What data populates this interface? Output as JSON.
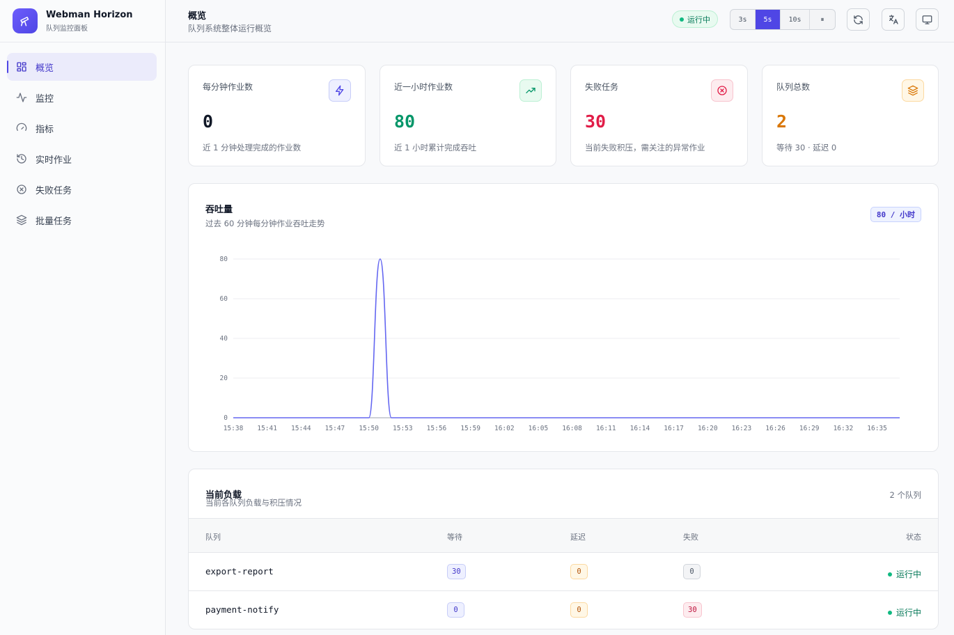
{
  "brand": {
    "title": "Webman Horizon",
    "subtitle": "队列监控面板"
  },
  "sidebar": {
    "items": [
      {
        "label": "概览",
        "icon": "grid-icon",
        "active": true
      },
      {
        "label": "监控",
        "icon": "activity-icon",
        "active": false
      },
      {
        "label": "指标",
        "icon": "gauge-icon",
        "active": false
      },
      {
        "label": "实时作业",
        "icon": "history-icon",
        "active": false
      },
      {
        "label": "失败任务",
        "icon": "x-circle-icon",
        "active": false
      },
      {
        "label": "批量任务",
        "icon": "layers-icon",
        "active": false
      }
    ]
  },
  "header": {
    "title": "概览",
    "subtitle": "队列系统整体运行概览",
    "status": "运行中",
    "intervals": [
      "3s",
      "5s",
      "10s",
      "⏸"
    ],
    "active_interval": "5s"
  },
  "colors": {
    "accent": "#4f46e5",
    "success": "#059669",
    "danger": "#e11d48",
    "warning": "#d97706"
  },
  "stats": [
    {
      "label": "每分钟作业数",
      "value": "0",
      "desc": "近 1 分钟处理完成的作业数",
      "icon": "bolt-icon",
      "color": "#111827"
    },
    {
      "label": "近一小时作业数",
      "value": "80",
      "desc": "近 1 小时累计完成吞吐",
      "icon": "trending-up-icon",
      "color": "#059669"
    },
    {
      "label": "失败任务",
      "value": "30",
      "desc": "当前失败积压，需关注的异常作业",
      "icon": "x-circle-icon",
      "color": "#e11d48"
    },
    {
      "label": "队列总数",
      "value": "2",
      "desc": "等待 30 · 延迟 0",
      "icon": "layers-icon",
      "color": "#d97706"
    }
  ],
  "throughput": {
    "title": "吞吐量",
    "subtitle": "过去 60 分钟每分钟作业吞吐走势",
    "rate_badge": "80 / 小时"
  },
  "chart_data": {
    "type": "line",
    "x_ticks": [
      "15:38",
      "15:41",
      "15:44",
      "15:47",
      "15:50",
      "15:53",
      "15:56",
      "15:59",
      "16:02",
      "16:05",
      "16:08",
      "16:11",
      "16:14",
      "16:17",
      "16:20",
      "16:23",
      "16:26",
      "16:29",
      "16:32",
      "16:35"
    ],
    "y_ticks": [
      0,
      20,
      40,
      60,
      80
    ],
    "ylim": [
      0,
      80
    ],
    "x_range": [
      "15:38",
      "16:37"
    ],
    "series": [
      {
        "color": "#6366f1",
        "points": [
          {
            "x": "15:38",
            "y": 0
          },
          {
            "x": "15:50",
            "y": 0
          },
          {
            "x": "15:51",
            "y": 80
          },
          {
            "x": "15:52",
            "y": 0
          },
          {
            "x": "16:37",
            "y": 0
          }
        ]
      }
    ],
    "grid": true
  },
  "load": {
    "title": "当前负载",
    "subtitle": "当前各队列负载与积压情况",
    "count": "2 个队列",
    "columns": [
      "队列",
      "等待",
      "延迟",
      "失败",
      "状态"
    ],
    "rows": [
      {
        "queue": "export-report",
        "waiting": "30",
        "delayed": "0",
        "failed": "0",
        "status": "运行中"
      },
      {
        "queue": "payment-notify",
        "waiting": "0",
        "delayed": "0",
        "failed": "30",
        "status": "运行中"
      }
    ]
  }
}
